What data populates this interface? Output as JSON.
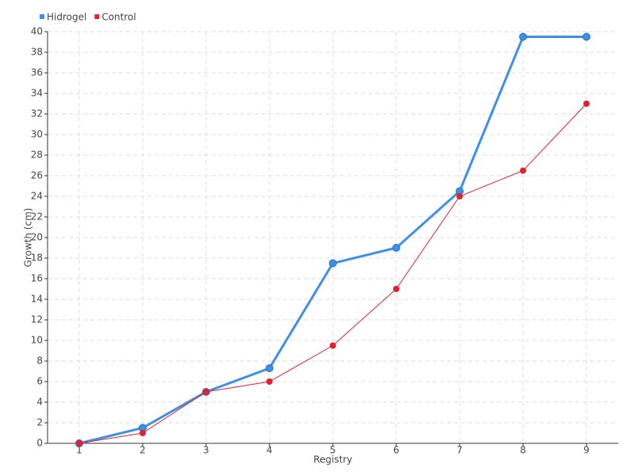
{
  "chart_data": {
    "type": "line",
    "x": [
      1,
      2,
      3,
      4,
      5,
      6,
      7,
      8,
      9
    ],
    "xlim": [
      0.5,
      9.5
    ],
    "xticks": [
      1,
      2,
      3,
      4,
      5,
      6,
      7,
      8,
      9
    ],
    "ylim": [
      0,
      40
    ],
    "yticks": [
      0,
      2,
      4,
      6,
      8,
      10,
      12,
      14,
      16,
      18,
      20,
      22,
      24,
      26,
      28,
      30,
      32,
      34,
      36,
      38,
      40
    ],
    "x_label": "Registry",
    "y_label": "Growth (cm)",
    "grid": true,
    "legend": "top-left",
    "series": [
      {
        "name": "Hidrogel",
        "color": "#3d8fe8",
        "values": [
          0,
          1.5,
          5,
          7.3,
          17.5,
          19,
          24.5,
          39.5,
          39.5
        ]
      },
      {
        "name": "Control",
        "color": "#e3202b",
        "values": [
          0,
          1,
          5,
          6,
          9.5,
          15,
          24,
          26.5,
          33
        ]
      }
    ]
  }
}
